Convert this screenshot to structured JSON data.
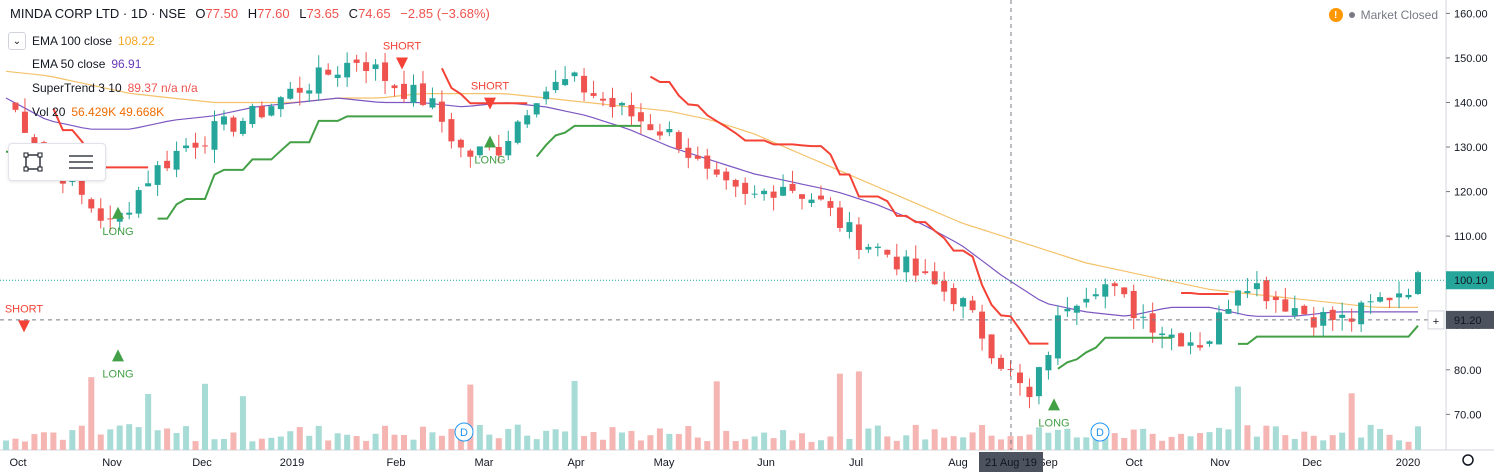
{
  "header": {
    "symbol": "MINDA CORP LTD · 1D · NSE",
    "open_label": "O",
    "open": "77.50",
    "high_label": "H",
    "high": "77.60",
    "low_label": "L",
    "low": "73.65",
    "close_label": "C",
    "close": "74.65",
    "change": "−2.85 (−3.68%)"
  },
  "indicators": [
    {
      "name": "EMA 100 close",
      "value": "108.22",
      "color": "#f5a623"
    },
    {
      "name": "EMA 50 close",
      "value": "96.91",
      "color": "#673ab7"
    },
    {
      "name": "SuperTrend 3 10",
      "value": "89.37  n/a  n/a",
      "color": "#ef5350"
    },
    {
      "name": "Vol 20",
      "value": "56.429K  49.668K",
      "color": "#ef6c00"
    }
  ],
  "market_status": "Market Closed",
  "toolbar": {
    "icons": [
      "square-select-icon",
      "lines-menu-icon"
    ]
  },
  "price_labels": {
    "last": "100.10",
    "crosshair": "91.20"
  },
  "crosshair_date": "21 Aug '19",
  "colors": {
    "up": "#26a69a",
    "down": "#ef5350",
    "st_up": "#43a047",
    "st_down": "#f44336",
    "ema100": "#f5c26b",
    "ema50": "#7e57c2",
    "last": "#26a69a"
  },
  "chart_data": {
    "type": "candlestick",
    "y_axis_ticks": [
      "160.00",
      "150.00",
      "140.00",
      "130.00",
      "120.00",
      "110.00",
      "100.00",
      "90.00",
      "80.00",
      "70.00"
    ],
    "ylim": [
      62,
      163
    ],
    "x_axis_ticks": [
      "Oct",
      "Nov",
      "Dec",
      "2019",
      "Feb",
      "Mar",
      "Apr",
      "May",
      "Jun",
      "Jul",
      "Aug",
      "Sep",
      "Oct",
      "Nov",
      "Dec",
      "2020"
    ],
    "supertrend_labels": [
      {
        "text": "LONG",
        "x_month": "Nov",
        "y": 113
      },
      {
        "text": "SHORT",
        "x_month": "Feb",
        "y": 151
      },
      {
        "text": "LONG",
        "x_month": "Mar",
        "y": 129
      },
      {
        "text": "SHORT",
        "x_month": "Mar",
        "y": 142
      },
      {
        "text": "LONG",
        "x_month": "Sep",
        "y": 70
      },
      {
        "text": "SHORT",
        "x_month": "Oct",
        "y": 92
      },
      {
        "text": "LONG",
        "x_month": "Nov",
        "y": 81
      }
    ],
    "dividend_markers": [
      "D",
      "D"
    ],
    "series": [
      {
        "name": "EMA 100 close",
        "values": [
          147,
          146,
          144,
          142,
          141,
          140,
          140,
          140,
          141,
          141,
          142,
          142,
          142,
          141,
          140,
          139,
          138,
          136,
          133,
          129,
          125,
          121,
          117,
          113,
          110,
          107,
          104,
          102,
          100,
          98,
          97,
          96,
          95,
          94,
          94
        ]
      },
      {
        "name": "EMA 50 close",
        "values": [
          141,
          136,
          134,
          134,
          136,
          137,
          139,
          140,
          141,
          140,
          140,
          139,
          140,
          139,
          137,
          134,
          130,
          127,
          124,
          122,
          120,
          117,
          113,
          108,
          101,
          95,
          93,
          92,
          94,
          94,
          92,
          92,
          93,
          93,
          93
        ]
      },
      {
        "name": "Close",
        "values": [
          141,
          130,
          120,
          112,
          123,
          130,
          134,
          137,
          142,
          146,
          150,
          144,
          140,
          128,
          130,
          142,
          145,
          140,
          136,
          132,
          122,
          118,
          122,
          118,
          110,
          106,
          100,
          96,
          84,
          73,
          95,
          100,
          93,
          88,
          86,
          101,
          96,
          92,
          91,
          96,
          100
        ]
      }
    ],
    "volume_note": "Vol 20"
  }
}
